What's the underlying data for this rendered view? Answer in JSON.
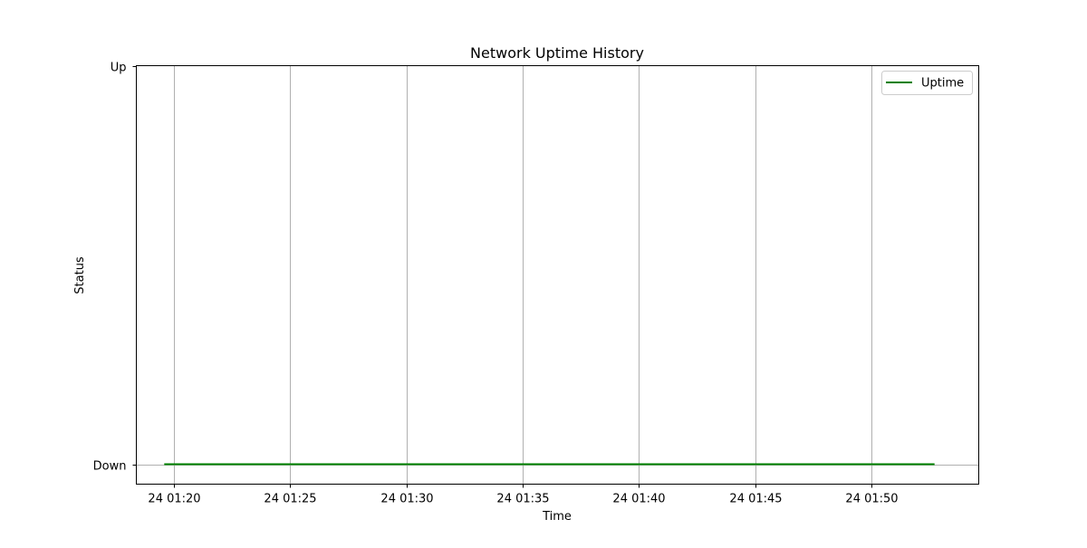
{
  "chart_data": {
    "type": "line",
    "title": "Network Uptime History",
    "xlabel": "Time",
    "ylabel": "Status",
    "grid": "vertical",
    "legend_location": "top-right",
    "x_unit": "minutes past 01:00 on day 24",
    "xlim": [
      18.4,
      54.6
    ],
    "ylim": [
      -0.05,
      1.0
    ],
    "x_ticks": [
      {
        "value": 20,
        "label": "24 01:20"
      },
      {
        "value": 25,
        "label": "24 01:25"
      },
      {
        "value": 30,
        "label": "24 01:30"
      },
      {
        "value": 35,
        "label": "24 01:35"
      },
      {
        "value": 40,
        "label": "24 01:40"
      },
      {
        "value": 45,
        "label": "24 01:45"
      },
      {
        "value": 50,
        "label": "24 01:50"
      }
    ],
    "y_ticks": [
      {
        "value": 0,
        "label": "Down"
      },
      {
        "value": 1,
        "label": "Up"
      }
    ],
    "series": [
      {
        "name": "Uptime",
        "color": "#008000",
        "x": [
          19.6,
          52.7
        ],
        "y": [
          0,
          0
        ]
      }
    ]
  }
}
